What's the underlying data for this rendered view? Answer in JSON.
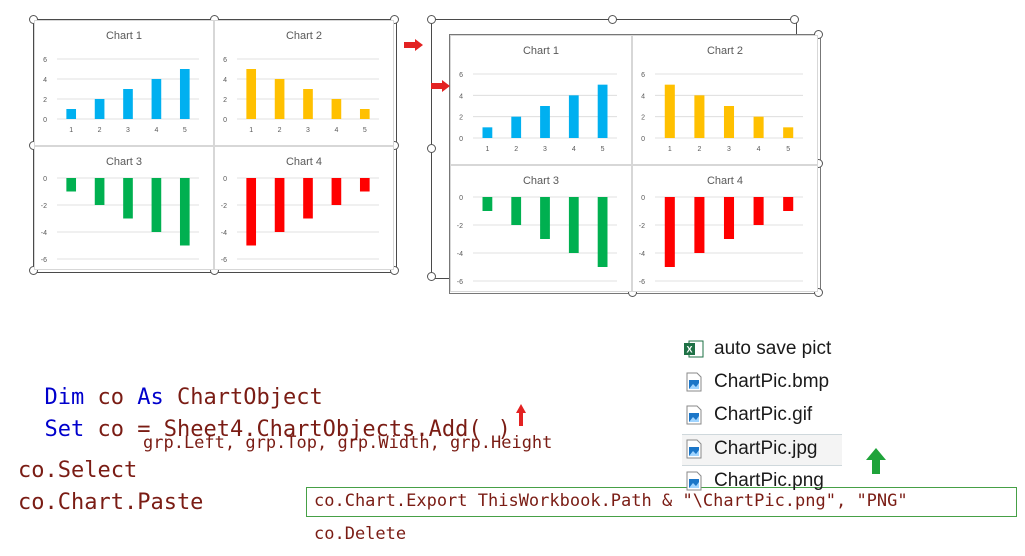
{
  "charts": [
    {
      "title": "Chart 1",
      "categories": [
        "1",
        "2",
        "3",
        "4",
        "5"
      ],
      "values": [
        1,
        2,
        3,
        4,
        5
      ],
      "yticks": [
        "6",
        "4",
        "2",
        "0"
      ],
      "color": "#00b0f0"
    },
    {
      "title": "Chart 2",
      "categories": [
        "1",
        "2",
        "3",
        "4",
        "5"
      ],
      "values": [
        5,
        4,
        3,
        2,
        1
      ],
      "yticks": [
        "6",
        "4",
        "2",
        "0"
      ],
      "color": "#ffc000"
    },
    {
      "title": "Chart 3",
      "values": [
        -1,
        -2,
        -3,
        -4,
        -5
      ],
      "yticks": [
        "0",
        "-2",
        "-4",
        "-6"
      ],
      "color": "#00b050"
    },
    {
      "title": "Chart 4",
      "values": [
        -5,
        -4,
        -3,
        -2,
        -1
      ],
      "yticks": [
        "0",
        "-2",
        "-4",
        "-6"
      ],
      "color": "#ff0000"
    }
  ],
  "code": {
    "line1_kw1": "Dim",
    "line1_var": "co",
    "line1_kw2": "As",
    "line1_type": "ChartObject",
    "line2_kw": "Set",
    "line2_rest": "co = Sheet4.ChartObjects.Add(",
    "line2_close": ")",
    "line3": "grp.Left, grp.Top, grp.Width, grp.Height",
    "line4": "co.Select",
    "line5": "co.Chart.Paste",
    "line6": "co.Chart.Export ThisWorkbook.Path & \"\\ChartPic.png\", \"PNG\"",
    "line7": "co.Delete"
  },
  "files": [
    {
      "name": "auto save pict",
      "icon": "excel-file-icon"
    },
    {
      "name": "ChartPic.bmp",
      "icon": "image-file-icon"
    },
    {
      "name": "ChartPic.gif",
      "icon": "image-file-icon"
    },
    {
      "name": "ChartPic.jpg",
      "icon": "image-file-icon"
    },
    {
      "name": "ChartPic.png",
      "icon": "image-file-icon"
    }
  ],
  "colors": {
    "arrow_red": "#e32222",
    "arrow_green": "#1fa33a",
    "excel_green": "#1e7145",
    "image_blue": "#1b76c8"
  }
}
